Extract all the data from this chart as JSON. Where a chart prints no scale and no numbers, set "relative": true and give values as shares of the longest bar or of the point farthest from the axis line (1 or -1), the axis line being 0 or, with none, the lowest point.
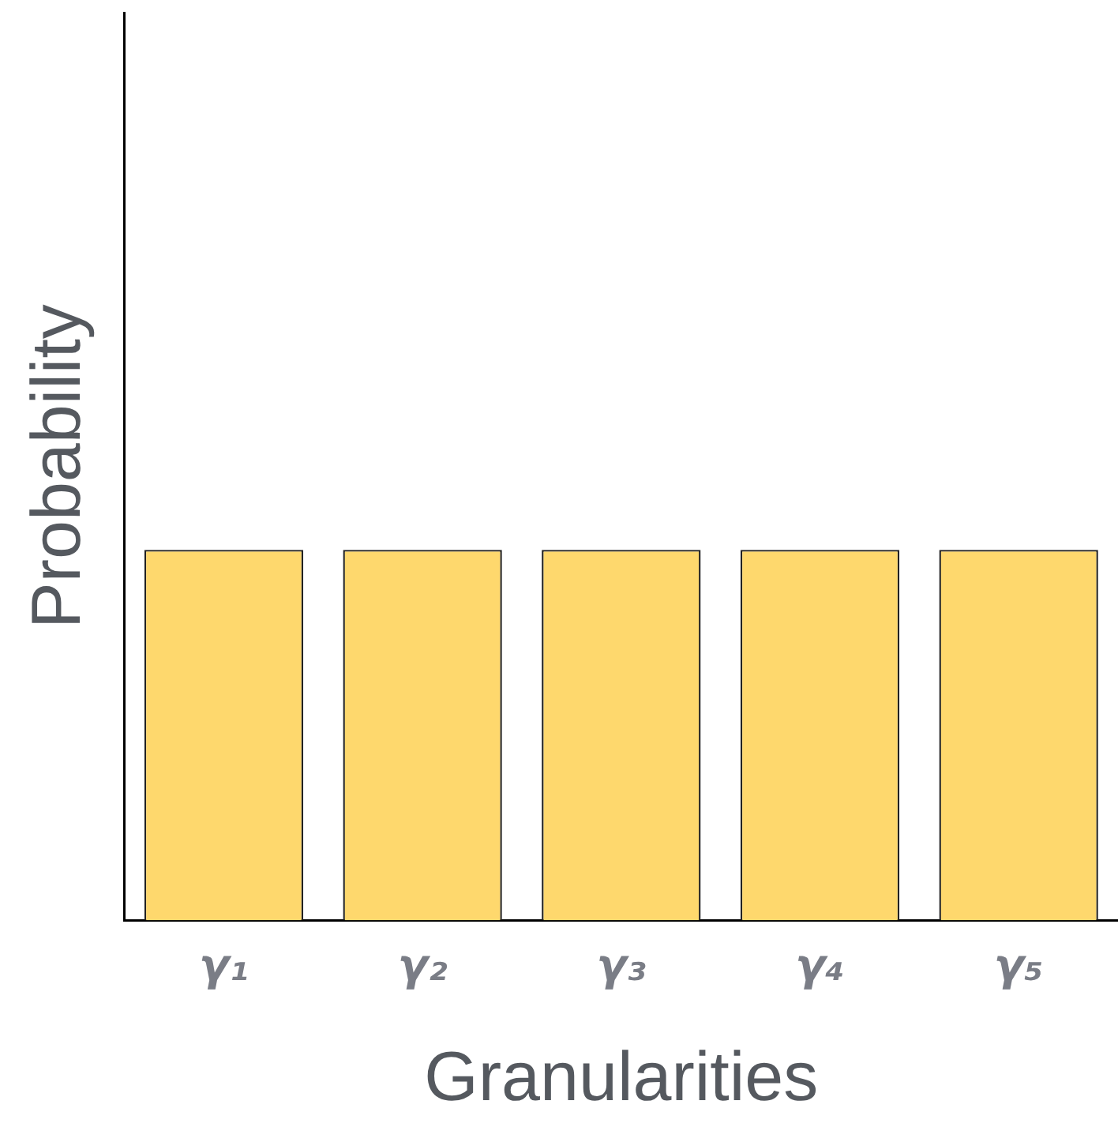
{
  "chart_data": {
    "type": "bar",
    "xlabel": "Granularities",
    "ylabel": "Probability",
    "categories": [
      "γ₁",
      "γ₂",
      "γ₃",
      "γ₄",
      "γ₅"
    ],
    "values": [
      1,
      1,
      1,
      1,
      1
    ],
    "color": "#fed86d",
    "relative": true,
    "grid": false,
    "legend": false
  }
}
